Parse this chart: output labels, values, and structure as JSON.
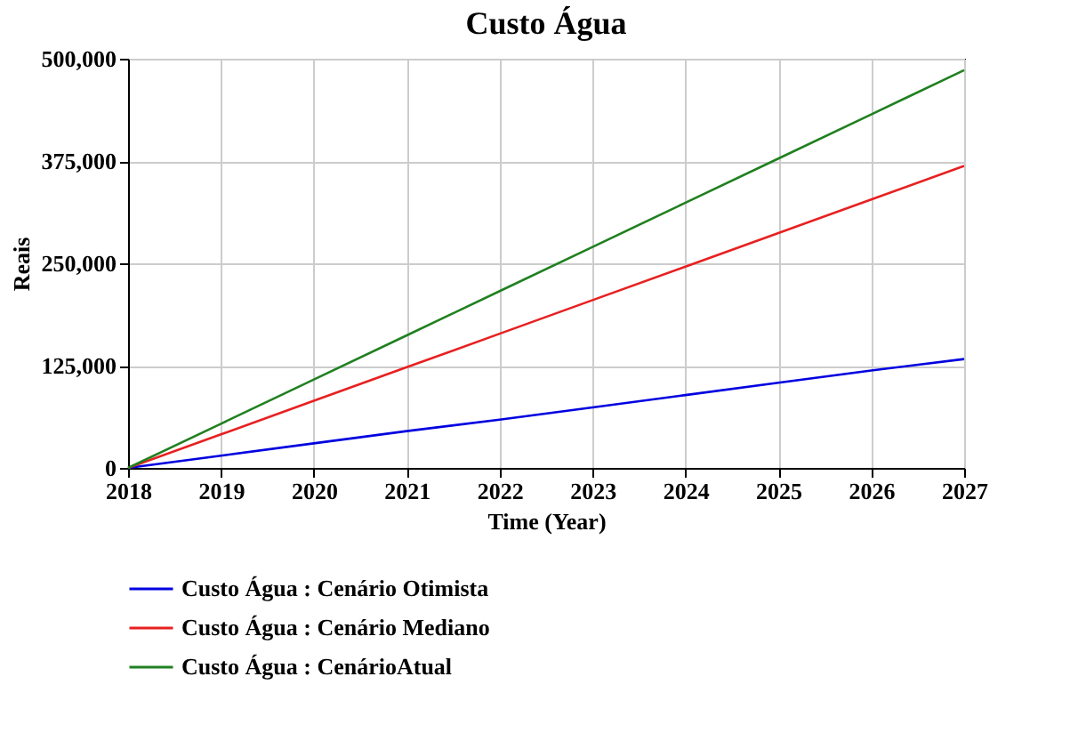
{
  "chart_data": {
    "type": "line",
    "title": "Custo Água",
    "xlabel": "Time (Year)",
    "ylabel": "Reais",
    "x": [
      2018,
      2019,
      2020,
      2021,
      2022,
      2023,
      2024,
      2025,
      2026,
      2027
    ],
    "series": [
      {
        "name": "Custo Água : Cenário Otimista",
        "color": "#0000e0",
        "values": [
          0,
          15000,
          30000,
          45000,
          59000,
          74000,
          89000,
          104000,
          119000,
          133000
        ]
      },
      {
        "name": "Custo Água : Cenário Mediano",
        "color": "#e82020",
        "values": [
          0,
          41000,
          82000,
          123000,
          164000,
          205000,
          246000,
          287000,
          328000,
          369000
        ]
      },
      {
        "name": "Custo Água : CenárioAtual",
        "color": "#208020",
        "values": [
          0,
          54000,
          108000,
          162000,
          216000,
          270000,
          324000,
          378000,
          432000,
          486000
        ]
      }
    ],
    "xlim": [
      2018,
      2027
    ],
    "xticks": [
      2018,
      2019,
      2020,
      2021,
      2022,
      2023,
      2024,
      2025,
      2026,
      2027
    ],
    "ylim": [
      0,
      500000
    ],
    "yticks": [
      0,
      {
        "value": 125000,
        "label": "125,000"
      },
      {
        "value": 250000,
        "label": "250,000"
      },
      {
        "value": 375000,
        "label": "375,000"
      },
      {
        "value": 500000,
        "label": "500,000"
      }
    ],
    "grid": true,
    "legend": "bottom",
    "line_style": "solid"
  }
}
